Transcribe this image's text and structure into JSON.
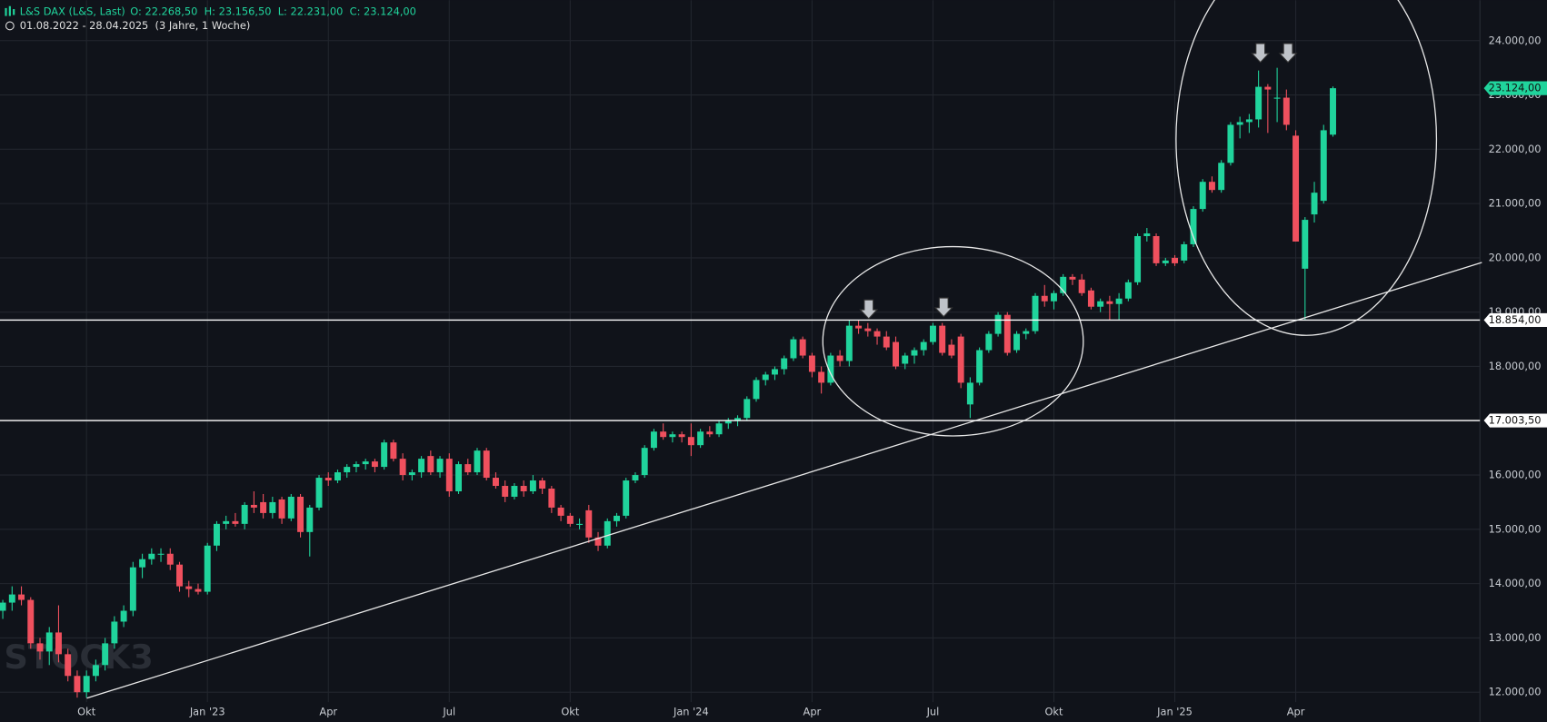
{
  "header": {
    "symbol": "L&S DAX (L&S, Last)",
    "ohlc": "O: 22.268,50  H: 23.156,50  L: 22.231,00  C: 23.124,00",
    "range": "01.08.2022 - 28.04.2025  (3 Jahre, 1 Woche)",
    "watermark": "STOCK3"
  },
  "chart_data": {
    "type": "candlestick",
    "up_color": "#20d49c",
    "down_color": "#f0505e",
    "grid": true,
    "xlim": [
      -0.3,
      158.8
    ],
    "ylim": [
      11455,
      24745
    ],
    "xticks": [
      {
        "value": 9,
        "label": "Okt"
      },
      {
        "value": 22,
        "label": "Jan '23"
      },
      {
        "value": 35,
        "label": "Apr"
      },
      {
        "value": 48,
        "label": "Jul"
      },
      {
        "value": 61,
        "label": "Okt"
      },
      {
        "value": 74,
        "label": "Jan '24"
      },
      {
        "value": 87,
        "label": "Apr"
      },
      {
        "value": 100,
        "label": "Jul"
      },
      {
        "value": 113,
        "label": "Okt"
      },
      {
        "value": 126,
        "label": "Jan '25"
      },
      {
        "value": 139,
        "label": "Apr"
      }
    ],
    "yticks": [
      {
        "value": 12000,
        "label": "12.000,00"
      },
      {
        "value": 13000,
        "label": "13.000,00"
      },
      {
        "value": 14000,
        "label": "14.000,00"
      },
      {
        "value": 15000,
        "label": "15.000,00"
      },
      {
        "value": 16000,
        "label": "16.000,00"
      },
      {
        "value": 17000,
        "label": "17.000,00"
      },
      {
        "value": 18000,
        "label": "18.000,00"
      },
      {
        "value": 19000,
        "label": "19.000,00"
      },
      {
        "value": 20000,
        "label": "20.000,00"
      },
      {
        "value": 21000,
        "label": "21.000,00"
      },
      {
        "value": 22000,
        "label": "22.000,00"
      },
      {
        "value": 23000,
        "label": "23.000,00"
      },
      {
        "value": 24000,
        "label": "24.000,00"
      }
    ],
    "hlines": [
      {
        "value": 18854,
        "label": "18.854,00"
      },
      {
        "value": 17003.5,
        "label": "17.003,50"
      }
    ],
    "price_label": {
      "value": 23124,
      "label": "23.124,00"
    },
    "candles": [
      [
        13500,
        13700,
        13350,
        13650
      ],
      [
        13650,
        13950,
        13500,
        13800
      ],
      [
        13800,
        13950,
        13600,
        13700
      ],
      [
        13700,
        13750,
        12800,
        12900
      ],
      [
        12900,
        13000,
        12600,
        12750
      ],
      [
        12750,
        13200,
        12500,
        13100
      ],
      [
        13100,
        13600,
        12550,
        12700
      ],
      [
        12700,
        12800,
        12200,
        12300
      ],
      [
        12300,
        12400,
        11900,
        12000
      ],
      [
        12000,
        12400,
        11900,
        12300
      ],
      [
        12300,
        12600,
        12200,
        12500
      ],
      [
        12500,
        13000,
        12400,
        12900
      ],
      [
        12900,
        13400,
        12800,
        13300
      ],
      [
        13300,
        13600,
        13200,
        13500
      ],
      [
        13500,
        14400,
        13400,
        14300
      ],
      [
        14300,
        14550,
        14100,
        14450
      ],
      [
        14450,
        14650,
        14350,
        14550
      ],
      [
        14550,
        14650,
        14400,
        14550
      ],
      [
        14550,
        14650,
        14250,
        14350
      ],
      [
        14350,
        14400,
        13850,
        13950
      ],
      [
        13950,
        14050,
        13750,
        13900
      ],
      [
        13900,
        14000,
        13800,
        13850
      ],
      [
        13850,
        14750,
        13800,
        14700
      ],
      [
        14700,
        15150,
        14600,
        15100
      ],
      [
        15100,
        15250,
        15000,
        15150
      ],
      [
        15150,
        15300,
        15050,
        15100
      ],
      [
        15100,
        15500,
        15000,
        15450
      ],
      [
        15450,
        15700,
        15300,
        15400
      ],
      [
        15500,
        15650,
        15200,
        15300
      ],
      [
        15300,
        15600,
        15200,
        15500
      ],
      [
        15550,
        15600,
        15100,
        15200
      ],
      [
        15200,
        15650,
        15150,
        15600
      ],
      [
        15600,
        15650,
        14850,
        14950
      ],
      [
        14950,
        15450,
        14500,
        15400
      ],
      [
        15400,
        16000,
        15350,
        15950
      ],
      [
        15950,
        16050,
        15800,
        15900
      ],
      [
        15900,
        16100,
        15850,
        16050
      ],
      [
        16050,
        16200,
        15950,
        16150
      ],
      [
        16150,
        16250,
        16050,
        16200
      ],
      [
        16200,
        16300,
        16100,
        16250
      ],
      [
        16250,
        16300,
        16050,
        16150
      ],
      [
        16150,
        16650,
        16100,
        16600
      ],
      [
        16600,
        16650,
        16250,
        16300
      ],
      [
        16300,
        16400,
        15900,
        16000
      ],
      [
        16000,
        16100,
        15900,
        16050
      ],
      [
        16050,
        16350,
        15950,
        16300
      ],
      [
        16350,
        16450,
        16000,
        16050
      ],
      [
        16050,
        16350,
        15950,
        16300
      ],
      [
        16300,
        16400,
        15600,
        15700
      ],
      [
        15700,
        16250,
        15650,
        16200
      ],
      [
        16200,
        16300,
        16000,
        16050
      ],
      [
        16050,
        16500,
        16000,
        16450
      ],
      [
        16450,
        16500,
        15900,
        15950
      ],
      [
        15950,
        16050,
        15750,
        15800
      ],
      [
        15800,
        15900,
        15500,
        15600
      ],
      [
        15600,
        15850,
        15550,
        15800
      ],
      [
        15800,
        15900,
        15600,
        15700
      ],
      [
        15700,
        16000,
        15650,
        15900
      ],
      [
        15900,
        15950,
        15650,
        15750
      ],
      [
        15750,
        15800,
        15300,
        15400
      ],
      [
        15400,
        15450,
        15150,
        15250
      ],
      [
        15250,
        15300,
        15050,
        15100
      ],
      [
        15100,
        15200,
        15000,
        15100
      ],
      [
        15350,
        15450,
        14750,
        14850
      ],
      [
        14850,
        14950,
        14600,
        14700
      ],
      [
        14700,
        15200,
        14650,
        15150
      ],
      [
        15150,
        15300,
        15050,
        15250
      ],
      [
        15250,
        15950,
        15200,
        15900
      ],
      [
        15900,
        16050,
        15850,
        16000
      ],
      [
        16000,
        16550,
        15950,
        16500
      ],
      [
        16500,
        16850,
        16450,
        16800
      ],
      [
        16800,
        16950,
        16650,
        16700
      ],
      [
        16700,
        16800,
        16600,
        16750
      ],
      [
        16750,
        16800,
        16600,
        16700
      ],
      [
        16700,
        16950,
        16350,
        16550
      ],
      [
        16550,
        16850,
        16500,
        16800
      ],
      [
        16800,
        16900,
        16700,
        16750
      ],
      [
        16750,
        17000,
        16700,
        16950
      ],
      [
        16950,
        17050,
        16850,
        17000
      ],
      [
        17000,
        17100,
        16900,
        17050
      ],
      [
        17050,
        17450,
        17000,
        17400
      ],
      [
        17400,
        17800,
        17350,
        17750
      ],
      [
        17750,
        17900,
        17650,
        17850
      ],
      [
        17850,
        18000,
        17750,
        17950
      ],
      [
        17950,
        18200,
        17850,
        18150
      ],
      [
        18150,
        18550,
        18100,
        18500
      ],
      [
        18500,
        18550,
        18150,
        18200
      ],
      [
        18200,
        18250,
        17800,
        17900
      ],
      [
        17900,
        18000,
        17500,
        17700
      ],
      [
        17700,
        18250,
        17650,
        18200
      ],
      [
        18200,
        18300,
        18000,
        18100
      ],
      [
        18100,
        18850,
        18000,
        18750
      ],
      [
        18750,
        18850,
        18600,
        18700
      ],
      [
        18700,
        18800,
        18550,
        18650
      ],
      [
        18650,
        18700,
        18400,
        18550
      ],
      [
        18550,
        18650,
        18300,
        18350
      ],
      [
        18450,
        18550,
        17950,
        18000
      ],
      [
        18050,
        18250,
        17950,
        18200
      ],
      [
        18200,
        18350,
        18050,
        18300
      ],
      [
        18300,
        18500,
        18200,
        18450
      ],
      [
        18450,
        18800,
        18400,
        18750
      ],
      [
        18750,
        18800,
        18200,
        18250
      ],
      [
        18400,
        18500,
        18150,
        18200
      ],
      [
        18550,
        18600,
        17600,
        17700
      ],
      [
        17300,
        17800,
        17050,
        17700
      ],
      [
        17700,
        18350,
        17650,
        18300
      ],
      [
        18300,
        18650,
        18250,
        18600
      ],
      [
        18600,
        19000,
        18550,
        18950
      ],
      [
        18950,
        19000,
        18200,
        18250
      ],
      [
        18300,
        18650,
        18250,
        18600
      ],
      [
        18600,
        18700,
        18500,
        18650
      ],
      [
        18650,
        19350,
        18600,
        19300
      ],
      [
        19300,
        19500,
        19100,
        19200
      ],
      [
        19200,
        19400,
        19050,
        19350
      ],
      [
        19350,
        19700,
        19300,
        19650
      ],
      [
        19650,
        19700,
        19500,
        19600
      ],
      [
        19600,
        19700,
        19300,
        19350
      ],
      [
        19400,
        19450,
        19050,
        19100
      ],
      [
        19100,
        19250,
        19000,
        19200
      ],
      [
        19200,
        19300,
        18850,
        19150
      ],
      [
        19150,
        19350,
        18850,
        19250
      ],
      [
        19250,
        19600,
        19200,
        19550
      ],
      [
        19550,
        20450,
        19500,
        20400
      ],
      [
        20400,
        20550,
        20300,
        20450
      ],
      [
        20400,
        20450,
        19850,
        19900
      ],
      [
        19900,
        20000,
        19850,
        19950
      ],
      [
        20000,
        20050,
        19850,
        19900
      ],
      [
        19950,
        20300,
        19900,
        20250
      ],
      [
        20250,
        20950,
        20200,
        20900
      ],
      [
        20900,
        21450,
        20850,
        21400
      ],
      [
        21400,
        21500,
        21200,
        21250
      ],
      [
        21250,
        21800,
        21200,
        21750
      ],
      [
        21750,
        22500,
        21700,
        22450
      ],
      [
        22450,
        22600,
        22200,
        22500
      ],
      [
        22500,
        22650,
        22300,
        22550
      ],
      [
        22550,
        23450,
        22400,
        23150
      ],
      [
        23150,
        23200,
        22300,
        23100
      ],
      [
        22950,
        23500,
        22500,
        22950
      ],
      [
        22950,
        23100,
        22350,
        22450
      ],
      [
        22250,
        22350,
        20300,
        20300
      ],
      [
        19800,
        20750,
        18850,
        20700
      ],
      [
        20800,
        21400,
        20650,
        21200
      ],
      [
        21050,
        22450,
        21000,
        22350
      ],
      [
        22268.5,
        23156.5,
        22231,
        23124
      ]
    ]
  }
}
